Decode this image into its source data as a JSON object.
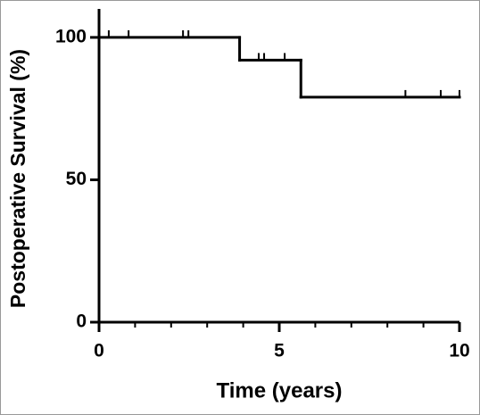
{
  "chart_data": {
    "type": "step",
    "xlabel": "Time (years)",
    "ylabel": "Postoperative Survival (%)",
    "x": [
      0,
      3.9,
      5.6,
      10
    ],
    "values": [
      100,
      92,
      79,
      79
    ],
    "color": "#000000",
    "censored": {
      "x": [
        0.27,
        0.82,
        2.33,
        2.48,
        4.43,
        4.58,
        5.15,
        8.5,
        9.48,
        10
      ],
      "values": [
        100,
        100,
        100,
        100,
        92,
        92,
        92,
        79,
        79,
        79
      ]
    },
    "xlim": [
      0,
      10
    ],
    "xticks": [
      0,
      5,
      10
    ],
    "xminorticks": [
      1,
      2,
      3,
      4,
      6,
      7,
      8,
      9
    ],
    "ylim": [
      0,
      110
    ],
    "yticks": [
      0,
      50,
      100
    ],
    "grid": false
  }
}
